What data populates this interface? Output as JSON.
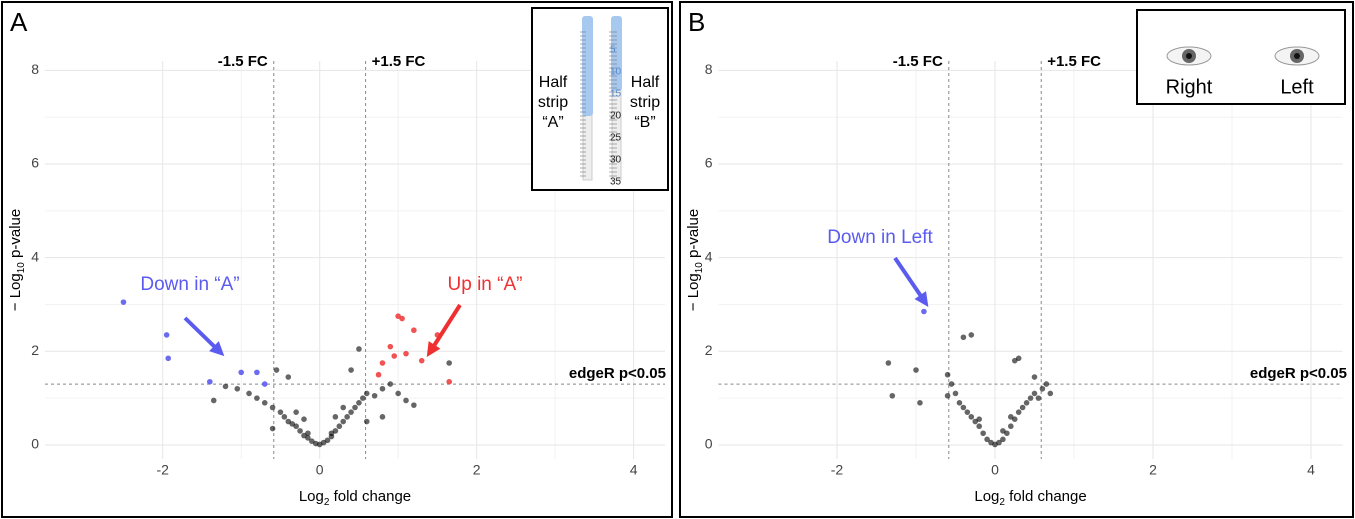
{
  "chart_data": [
    {
      "type": "scatter",
      "panel_label": "A",
      "x_label": [
        "Log",
        "2",
        " fold change"
      ],
      "y_label": [
        "− Log",
        "10",
        " p-value"
      ],
      "xlim": [
        -3.5,
        4.4
      ],
      "ylim": [
        -0.3,
        8.2
      ],
      "xticks": [
        -2,
        0,
        2,
        4
      ],
      "yticks": [
        0,
        2,
        4,
        6,
        8
      ],
      "grid": true,
      "vlines": [
        -0.585,
        0.585
      ],
      "vline_labels": [
        "-1.5 FC",
        "+1.5 FC"
      ],
      "hline": 1.3,
      "hline_label": "edgeR p<0.05",
      "series": [
        {
          "color": "#000000",
          "x": [
            -1.35,
            -1.2,
            -1.05,
            -0.9,
            -0.8,
            -0.7,
            -0.6,
            -0.5,
            -0.45,
            -0.4,
            -0.35,
            -0.3,
            -0.25,
            -0.2,
            -0.15,
            -0.1,
            -0.05,
            0,
            0.05,
            0.1,
            0.15,
            0.2,
            0.25,
            0.3,
            0.35,
            0.4,
            0.45,
            0.5,
            0.55,
            0.6,
            0.7,
            0.8,
            0.9,
            1.0,
            1.1,
            1.2,
            0.5,
            0.4,
            -0.4,
            -0.55,
            1.65,
            0.3,
            0.2,
            -0.2,
            -0.3,
            0.6,
            -0.6,
            0.15,
            -0.15,
            0.8
          ],
          "y": [
            0.95,
            1.25,
            1.2,
            1.1,
            1.0,
            0.9,
            0.8,
            0.7,
            0.6,
            0.5,
            0.45,
            0.4,
            0.3,
            0.2,
            0.15,
            0.08,
            0.03,
            0.01,
            0.05,
            0.1,
            0.18,
            0.3,
            0.4,
            0.5,
            0.6,
            0.7,
            0.8,
            0.9,
            1.0,
            1.1,
            1.05,
            1.2,
            1.3,
            1.1,
            0.95,
            0.85,
            2.05,
            1.6,
            1.45,
            1.6,
            1.75,
            0.8,
            0.6,
            0.55,
            0.7,
            0.5,
            0.35,
            0.25,
            0.25,
            0.6
          ]
        },
        {
          "color": "#5b5bf0",
          "x": [
            -2.5,
            -1.95,
            -1.93,
            -1.4,
            -1.0,
            -0.8,
            -0.7
          ],
          "y": [
            3.05,
            2.35,
            1.85,
            1.35,
            1.55,
            1.55,
            1.3
          ]
        },
        {
          "color": "#f04040",
          "x": [
            0.75,
            0.8,
            0.9,
            0.95,
            1.0,
            1.05,
            1.1,
            1.2,
            1.3,
            1.5,
            1.65
          ],
          "y": [
            1.5,
            1.75,
            2.1,
            1.9,
            2.75,
            2.7,
            1.95,
            2.45,
            1.8,
            2.35,
            1.35
          ]
        }
      ],
      "annotations": [
        {
          "text": "Down in “A”",
          "color": "#5b5bf0"
        },
        {
          "text": "Up in “A”",
          "color": "#f03030"
        }
      ],
      "inset": {
        "left_label": [
          "Half",
          "strip",
          "“A”"
        ],
        "right_label": [
          "Half",
          "strip",
          "“B”"
        ],
        "strip_numbers": [
          5,
          10,
          15,
          20,
          25,
          30,
          35
        ]
      }
    },
    {
      "type": "scatter",
      "panel_label": "B",
      "x_label": [
        "Log",
        "2",
        " fold change"
      ],
      "y_label": [
        "− Log",
        "10",
        " p-value"
      ],
      "xlim": [
        -3.5,
        4.4
      ],
      "ylim": [
        -0.3,
        8.2
      ],
      "xticks": [
        -2,
        0,
        2,
        4
      ],
      "yticks": [
        0,
        2,
        4,
        6,
        8
      ],
      "grid": true,
      "vlines": [
        -0.585,
        0.585
      ],
      "vline_labels": [
        "-1.5 FC",
        "+1.5 FC"
      ],
      "hline": 1.3,
      "hline_label": "edgeR p<0.05",
      "series": [
        {
          "color": "#000000",
          "x": [
            -1.35,
            -1.3,
            -1.0,
            -0.95,
            -0.6,
            -0.55,
            -0.5,
            -0.45,
            -0.4,
            -0.35,
            -0.3,
            -0.25,
            -0.2,
            -0.15,
            -0.1,
            -0.05,
            0,
            0.05,
            0.1,
            0.15,
            0.2,
            0.25,
            0.3,
            0.35,
            0.4,
            0.45,
            0.5,
            0.55,
            0.6,
            0.65,
            0.7,
            -0.4,
            -0.3,
            0.3,
            0.25,
            -0.6,
            0.5,
            0.2,
            -0.2,
            0.1
          ],
          "y": [
            1.75,
            1.05,
            1.6,
            0.9,
            1.5,
            1.3,
            1.1,
            0.9,
            0.8,
            0.7,
            0.6,
            0.5,
            0.4,
            0.25,
            0.12,
            0.05,
            0.01,
            0.05,
            0.12,
            0.25,
            0.4,
            0.55,
            0.7,
            0.8,
            0.9,
            1.0,
            1.1,
            1.0,
            1.2,
            1.3,
            1.1,
            2.3,
            2.35,
            1.85,
            1.8,
            1.05,
            1.45,
            0.6,
            0.55,
            0.3
          ]
        },
        {
          "color": "#5b5bf0",
          "x": [
            -0.9
          ],
          "y": [
            2.85
          ]
        }
      ],
      "annotations": [
        {
          "text": "Down in Left",
          "color": "#5b5bf0"
        }
      ],
      "inset": {
        "eye_labels": [
          "Right",
          "Left"
        ]
      }
    }
  ]
}
